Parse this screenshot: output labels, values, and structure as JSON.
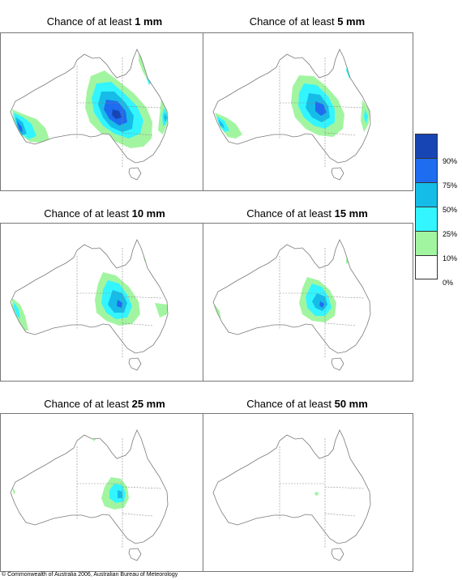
{
  "panels": [
    {
      "prefix": "Chance of at least",
      "amount": "1 mm",
      "level": 6
    },
    {
      "prefix": "Chance of at least",
      "amount": "5 mm",
      "level": 5
    },
    {
      "prefix": "Chance of at least",
      "amount": "10 mm",
      "level": 4
    },
    {
      "prefix": "Chance of at least",
      "amount": "15 mm",
      "level": 3
    },
    {
      "prefix": "Chance of at least",
      "amount": "25 mm",
      "level": 2
    },
    {
      "prefix": "Chance of at least",
      "amount": "50 mm",
      "level": 1
    }
  ],
  "legend": {
    "labels": [
      "90%",
      "75%",
      "50%",
      "25%",
      "10%",
      "0%"
    ],
    "colors": [
      "#1746b4",
      "#1e6cf0",
      "#16bce8",
      "#33f5ff",
      "#a2f5a0",
      "#ffffff"
    ]
  },
  "colors": {
    "coast": "#7a7a7a",
    "border": "#8a8a8a"
  },
  "footer": "© Commonwealth of Australia 2006, Australian Bureau of Meteorology"
}
